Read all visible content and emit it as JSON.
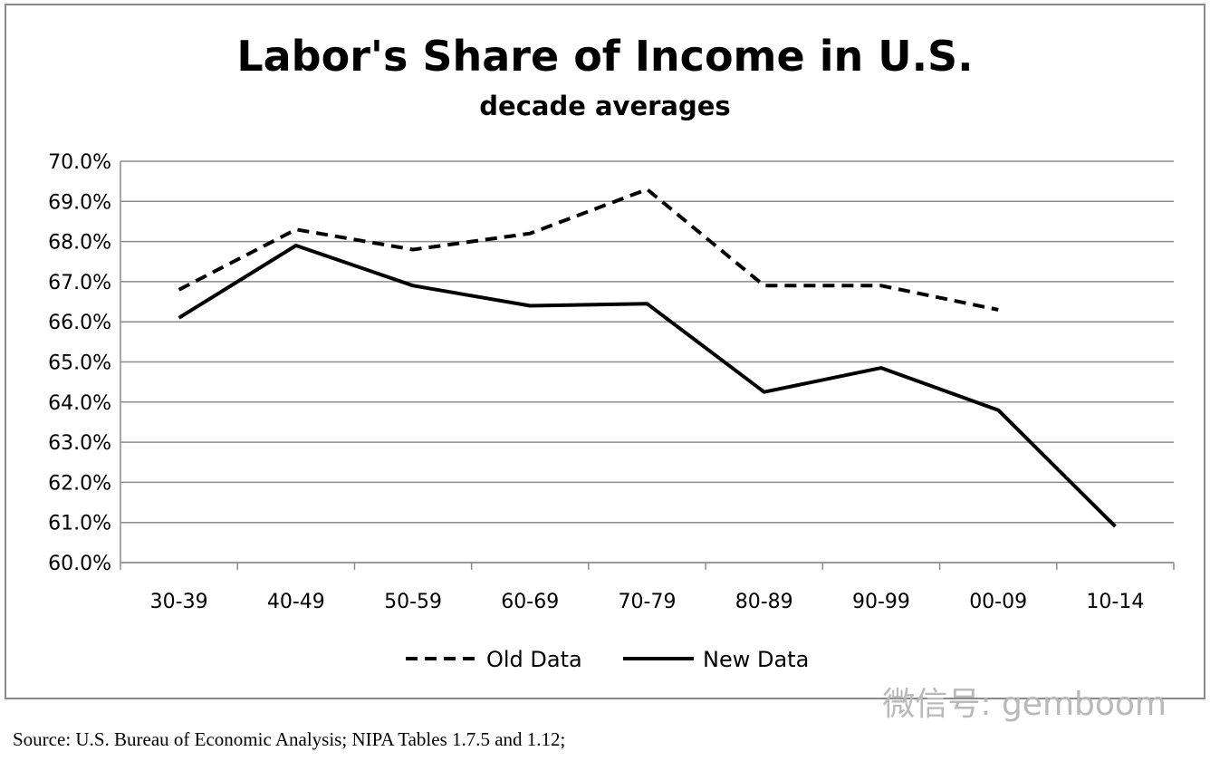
{
  "chart_data": {
    "type": "line",
    "title": "Labor's Share of Income in U.S.",
    "subtitle": "decade averages",
    "categories": [
      "30-39",
      "40-49",
      "50-59",
      "60-69",
      "70-79",
      "80-89",
      "90-99",
      "00-09",
      "10-14"
    ],
    "series": [
      {
        "name": "Old Data",
        "style": "dashed",
        "values": [
          66.8,
          68.3,
          67.8,
          68.2,
          69.3,
          66.9,
          66.9,
          66.3,
          null
        ]
      },
      {
        "name": "New Data",
        "style": "solid",
        "values": [
          66.1,
          67.9,
          66.9,
          66.4,
          66.45,
          64.25,
          64.85,
          63.8,
          60.9
        ]
      }
    ],
    "ylim": [
      60,
      70
    ],
    "yticks": [
      "70.0%",
      "69.0%",
      "68.0%",
      "67.0%",
      "66.0%",
      "65.0%",
      "64.0%",
      "63.0%",
      "62.0%",
      "61.0%",
      "60.0%"
    ],
    "ytick_values": [
      70,
      69,
      68,
      67,
      66,
      65,
      64,
      63,
      62,
      61,
      60
    ],
    "grid": true,
    "legend_position": "bottom-center",
    "line_color": "#000000",
    "grid_color": "#8c8c8c"
  },
  "source_note": "Source: U.S. Bureau of Economic Analysis; NIPA Tables 1.7.5 and 1.12;",
  "watermark": "微信号: gemboom"
}
